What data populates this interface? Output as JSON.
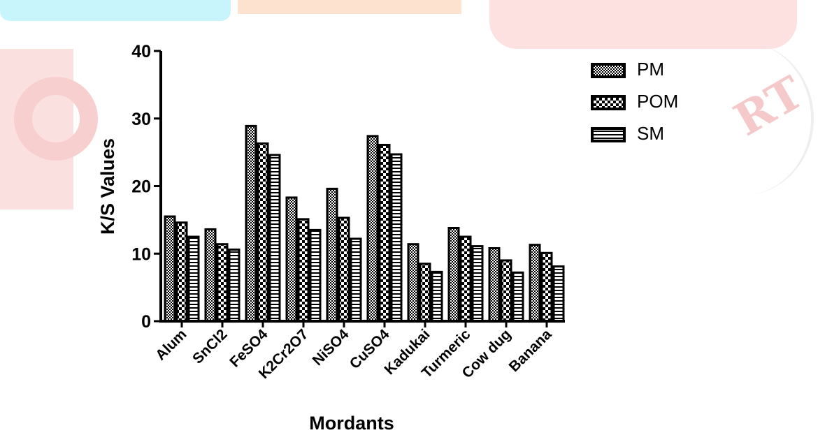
{
  "chart_data": {
    "type": "bar",
    "ylabel": "K/S Values",
    "xlabel": "Mordants",
    "ylim": [
      0,
      40
    ],
    "yticks": [
      0,
      10,
      20,
      30,
      40
    ],
    "categories": [
      "Alum",
      "SnCl2",
      "FeSO4",
      "K2Cr2O7",
      "NiSO4",
      "CuSO4",
      "Kadukai",
      "Turmeric",
      "Cow dug",
      "Banana"
    ],
    "series": [
      {
        "name": "PM",
        "pattern": "dense-check",
        "values": [
          15.5,
          13.6,
          28.9,
          18.3,
          19.6,
          27.4,
          11.4,
          13.8,
          10.8,
          11.3
        ]
      },
      {
        "name": "POM",
        "pattern": "check",
        "values": [
          14.6,
          11.4,
          26.3,
          15.1,
          15.3,
          26.1,
          8.5,
          12.5,
          9.0,
          10.1
        ]
      },
      {
        "name": "SM",
        "pattern": "stripes",
        "values": [
          12.5,
          10.6,
          24.6,
          13.5,
          12.2,
          24.7,
          7.3,
          11.1,
          7.2,
          8.1
        ]
      }
    ],
    "legend_position": "top-right",
    "grid": false,
    "colors": {
      "ink": "#000000",
      "background": "#ffffff"
    }
  }
}
